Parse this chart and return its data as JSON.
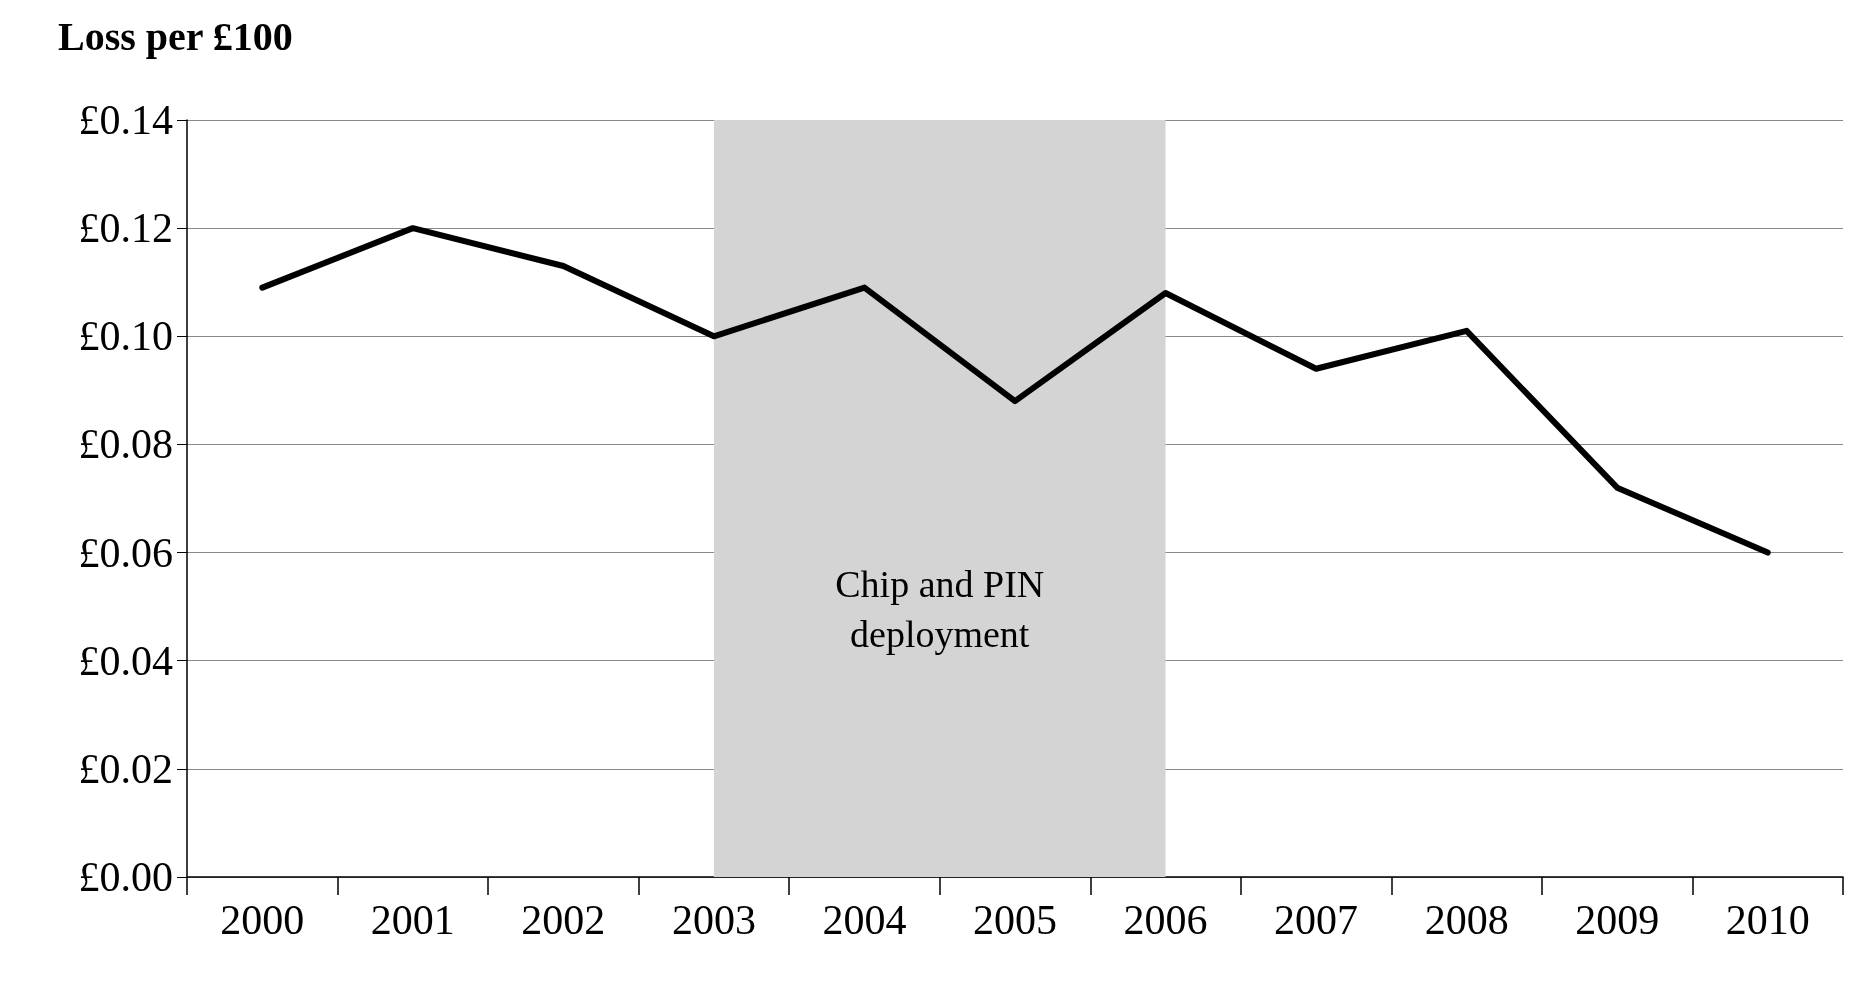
{
  "chart_data": {
    "type": "line",
    "ylabel": "Loss per £100",
    "categories": [
      "2000",
      "2001",
      "2002",
      "2003",
      "2004",
      "2005",
      "2006",
      "2007",
      "2008",
      "2009",
      "2010"
    ],
    "series": [
      {
        "color": "#000000",
        "values": [
          0.109,
          0.12,
          0.113,
          0.1,
          0.109,
          0.088,
          0.108,
          0.094,
          0.101,
          0.072,
          0.06
        ]
      }
    ],
    "ylim": [
      0,
      0.14
    ],
    "yticks": [
      {
        "value": 0,
        "label": "£0.00"
      },
      {
        "value": 0.02,
        "label": "£0.02"
      },
      {
        "value": 0.04,
        "label": "£0.04"
      },
      {
        "value": 0.06,
        "label": "£0.06"
      },
      {
        "value": 0.08,
        "label": "£0.08"
      },
      {
        "value": 0.1,
        "label": "£0.10"
      },
      {
        "value": 0.12,
        "label": "£0.12"
      },
      {
        "value": 0.14,
        "label": "£0.14"
      }
    ],
    "bands": [
      {
        "axis": "x",
        "from": "2003",
        "to": "2006",
        "label": "Chip and PIN\ndeployment",
        "color": "#d4d4d4"
      }
    ],
    "grid": "y",
    "marker": "none",
    "line_style": "solid"
  }
}
